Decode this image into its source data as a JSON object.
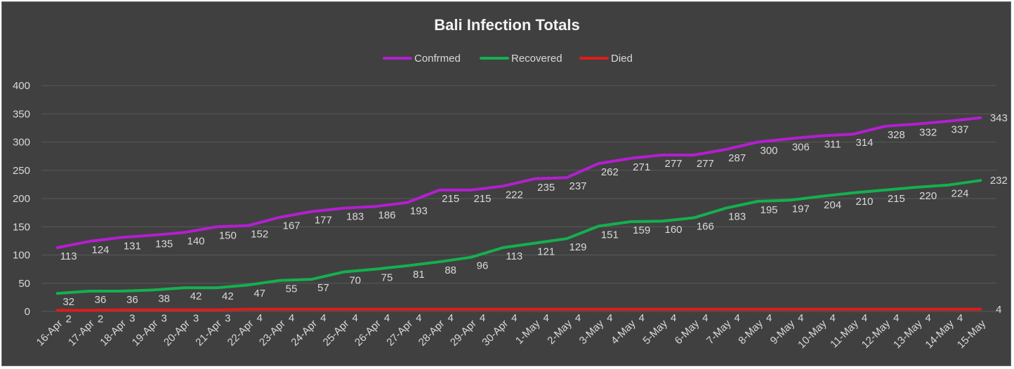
{
  "chart_data": {
    "type": "line",
    "title": "Bali Infection Totals",
    "xlabel": "",
    "ylabel": "",
    "ylim": [
      0,
      400
    ],
    "yticks": [
      0,
      50,
      100,
      150,
      200,
      250,
      300,
      350,
      400
    ],
    "grid": true,
    "legend_position": "top",
    "categories": [
      "16-Apr",
      "17-Apr",
      "18-Apr",
      "19-Apr",
      "20-Apr",
      "21-Apr",
      "22-Apr",
      "23-Apr",
      "24-Apr",
      "25-Apr",
      "26-Apr",
      "27-Apr",
      "28-Apr",
      "29-Apr",
      "30-Apr",
      "1-May",
      "2-May",
      "3-May",
      "4-May",
      "5-May",
      "6-May",
      "7-May",
      "8-May",
      "9-May",
      "10-May",
      "11-May",
      "12-May",
      "13-May",
      "14-May",
      "15-May"
    ],
    "series": [
      {
        "name": "Confrmed",
        "color": "#b31fcf",
        "values": [
          113,
          124,
          131,
          135,
          140,
          150,
          152,
          167,
          177,
          183,
          186,
          193,
          215,
          215,
          222,
          235,
          237,
          262,
          271,
          277,
          277,
          287,
          300,
          306,
          311,
          314,
          328,
          332,
          337,
          343
        ]
      },
      {
        "name": "Recovered",
        "color": "#14b04f",
        "values": [
          32,
          36,
          36,
          38,
          42,
          42,
          47,
          55,
          57,
          70,
          75,
          81,
          88,
          96,
          113,
          121,
          129,
          151,
          159,
          160,
          166,
          183,
          195,
          197,
          204,
          210,
          215,
          220,
          224,
          232
        ]
      },
      {
        "name": "Died",
        "color": "#e01b1b",
        "values": [
          2,
          2,
          3,
          3,
          3,
          3,
          4,
          4,
          4,
          4,
          4,
          4,
          4,
          4,
          4,
          4,
          4,
          4,
          4,
          4,
          4,
          4,
          4,
          4,
          4,
          4,
          4,
          4,
          4,
          4
        ]
      }
    ]
  }
}
